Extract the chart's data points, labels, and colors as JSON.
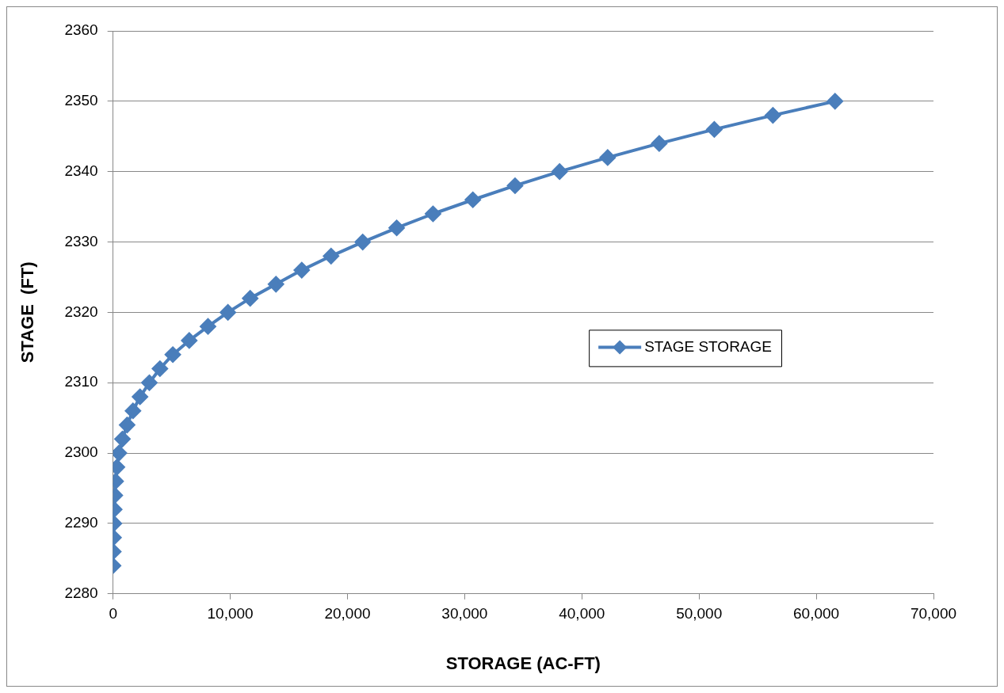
{
  "chart_data": {
    "type": "line",
    "xlabel": "STORAGE (AC-FT)",
    "ylabel": "STAGE  (FT)",
    "series": [
      {
        "name": "STAGE STORAGE",
        "color": "#4a7ebb",
        "x": [
          0,
          20,
          40,
          70,
          100,
          150,
          220,
          330,
          500,
          800,
          1200,
          1700,
          2300,
          3100,
          4000,
          5100,
          6500,
          8100,
          9800,
          11700,
          13900,
          16100,
          18600,
          21300,
          24200,
          27300,
          30700,
          34300,
          38100,
          42200,
          46600,
          51300,
          56300,
          61600
        ],
        "values": [
          2284,
          2286,
          2288,
          2290,
          2292,
          2294,
          2296,
          2298,
          2300,
          2302,
          2304,
          2306,
          2308,
          2310,
          2312,
          2314,
          2316,
          2318,
          2320,
          2322,
          2324,
          2326,
          2328,
          2330,
          2332,
          2334,
          2336,
          2338,
          2340,
          2342,
          2344,
          2346,
          2348,
          2350
        ]
      }
    ],
    "xlim": [
      0,
      70000
    ],
    "xticks": [
      {
        "value": 0,
        "label": "0"
      },
      {
        "value": 10000,
        "label": "10,000"
      },
      {
        "value": 20000,
        "label": "20,000"
      },
      {
        "value": 30000,
        "label": "30,000"
      },
      {
        "value": 40000,
        "label": "40,000"
      },
      {
        "value": 50000,
        "label": "50,000"
      },
      {
        "value": 60000,
        "label": "60,000"
      },
      {
        "value": 70000,
        "label": "70,000"
      }
    ],
    "ylim": [
      2280,
      2360
    ],
    "yticks": [
      2280,
      2290,
      2300,
      2310,
      2320,
      2330,
      2340,
      2350,
      2360
    ],
    "grid": "y",
    "legend": "right",
    "marker": "diamond",
    "line_style": "solid"
  }
}
